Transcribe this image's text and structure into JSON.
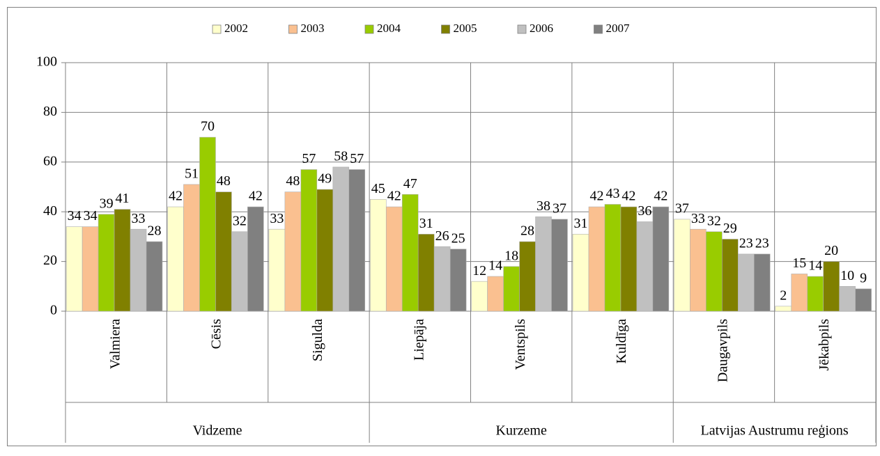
{
  "chart_data": {
    "type": "bar",
    "groups": [
      {
        "name": "Vidzeme",
        "categories": [
          "Valmiera",
          "Cēsis",
          "Sigulda"
        ]
      },
      {
        "name": "Kurzeme",
        "categories": [
          "Liepāja",
          "Ventspils",
          "Kuldīga"
        ]
      },
      {
        "name": "Latvijas Austrumu reģions",
        "categories": [
          "Daugavpils",
          "Jēkabpils"
        ]
      }
    ],
    "series": [
      {
        "name": "2002",
        "color": "#ffffcc",
        "values": [
          34,
          42,
          33,
          45,
          12,
          31,
          37,
          2
        ]
      },
      {
        "name": "2003",
        "color": "#fac090",
        "values": [
          34,
          51,
          48,
          42,
          14,
          42,
          33,
          15
        ]
      },
      {
        "name": "2004",
        "color": "#99cc00",
        "values": [
          39,
          70,
          57,
          47,
          18,
          43,
          32,
          14
        ]
      },
      {
        "name": "2005",
        "color": "#808000",
        "values": [
          41,
          48,
          49,
          31,
          28,
          42,
          29,
          20
        ]
      },
      {
        "name": "2006",
        "color": "#c0c0c0",
        "values": [
          33,
          32,
          58,
          26,
          38,
          36,
          23,
          10
        ]
      },
      {
        "name": "2007",
        "color": "#808080",
        "values": [
          28,
          42,
          57,
          25,
          37,
          42,
          23,
          9
        ]
      }
    ],
    "ylim": [
      0,
      100
    ],
    "yticks": [
      0,
      20,
      40,
      60,
      80,
      100
    ],
    "grid": true,
    "legend": "top"
  }
}
